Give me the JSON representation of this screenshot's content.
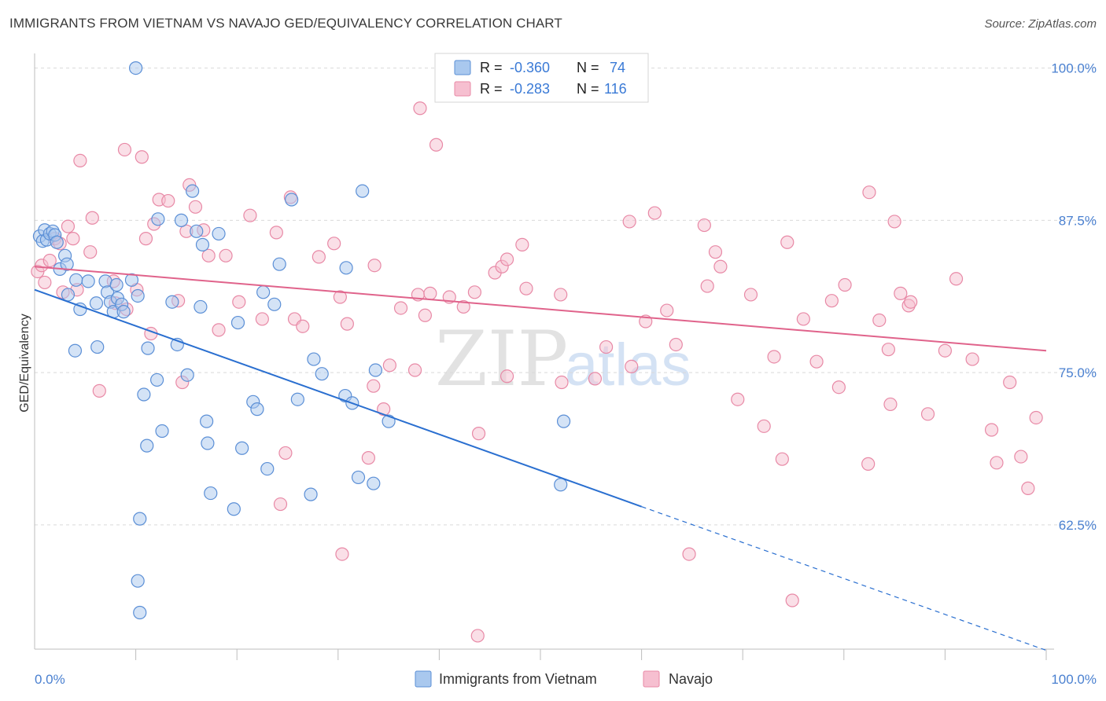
{
  "header": {
    "title": "IMMIGRANTS FROM VIETNAM VS NAVAJO GED/EQUIVALENCY CORRELATION CHART",
    "source": "Source: ZipAtlas.com"
  },
  "watermark": {
    "zip": "ZIP",
    "atlas": "atlas"
  },
  "legend_top": [
    {
      "r_label": "R =",
      "r_value": "-0.360",
      "n_label": "N =",
      "n_value": "74"
    },
    {
      "r_label": "R =",
      "r_value": "-0.283",
      "n_label": "N =",
      "n_value": "116"
    }
  ],
  "legend_bottom": [
    "Immigrants from Vietnam",
    "Navajo"
  ],
  "colors": {
    "blue_fill": "#a9c8ee",
    "blue_stroke": "#5b8fd6",
    "blue_line": "#2a6fd0",
    "pink_fill": "#f6bfd0",
    "pink_stroke": "#e889a6",
    "pink_line": "#e0638b",
    "tick_label": "#4a80d0",
    "grid": "#d9d9d9"
  },
  "chart_data": {
    "type": "scatter",
    "title": "IMMIGRANTS FROM VIETNAM VS NAVAJO GED/EQUIVALENCY CORRELATION CHART",
    "xlabel": "",
    "ylabel": "GED/Equivalency",
    "xlim": [
      0,
      100
    ],
    "ylim": [
      52.3,
      101.2
    ],
    "x_tick_labels": [
      "0.0%",
      "100.0%"
    ],
    "y_ticks": [
      62.5,
      75.0,
      87.5,
      100.0
    ],
    "y_tick_labels": [
      "62.5%",
      "75.0%",
      "87.5%",
      "100.0%"
    ],
    "grid": "horizontal dashed",
    "legend_position": "top-center and bottom",
    "series": [
      {
        "name": "Immigrants from Vietnam",
        "r": -0.36,
        "n": 74,
        "trend": {
          "x0": 0,
          "y0": 81.8,
          "x1": 60,
          "y1": 64.0,
          "dashed_to_x": 100,
          "dashed_to_y": 52.2
        },
        "points": [
          [
            0.5,
            86.2
          ],
          [
            0.8,
            85.8
          ],
          [
            1.0,
            86.7
          ],
          [
            1.2,
            85.9
          ],
          [
            1.5,
            86.4
          ],
          [
            1.8,
            86.6
          ],
          [
            2.0,
            86.3
          ],
          [
            2.2,
            85.7
          ],
          [
            2.5,
            83.5
          ],
          [
            3.0,
            84.6
          ],
          [
            3.2,
            83.9
          ],
          [
            3.3,
            81.4
          ],
          [
            4.1,
            82.6
          ],
          [
            4.0,
            76.8
          ],
          [
            4.5,
            80.2
          ],
          [
            5.3,
            82.5
          ],
          [
            6.1,
            80.7
          ],
          [
            6.2,
            77.1
          ],
          [
            7.0,
            82.5
          ],
          [
            7.2,
            81.6
          ],
          [
            7.5,
            80.8
          ],
          [
            7.8,
            80.0
          ],
          [
            8.1,
            82.2
          ],
          [
            8.2,
            81.1
          ],
          [
            8.6,
            80.6
          ],
          [
            8.8,
            80.0
          ],
          [
            9.6,
            82.6
          ],
          [
            10.2,
            81.3
          ],
          [
            10.8,
            73.2
          ],
          [
            11.1,
            69.0
          ],
          [
            12.1,
            74.4
          ],
          [
            12.6,
            70.2
          ],
          [
            11.2,
            77.0
          ],
          [
            12.2,
            87.6
          ],
          [
            13.6,
            80.8
          ],
          [
            14.1,
            77.3
          ],
          [
            14.5,
            87.5
          ],
          [
            15.1,
            74.8
          ],
          [
            15.6,
            89.9
          ],
          [
            16.0,
            86.6
          ],
          [
            16.4,
            80.4
          ],
          [
            16.6,
            85.5
          ],
          [
            17.0,
            71.0
          ],
          [
            17.1,
            69.2
          ],
          [
            17.4,
            65.1
          ],
          [
            18.2,
            86.4
          ],
          [
            19.7,
            63.8
          ],
          [
            20.1,
            79.1
          ],
          [
            20.5,
            68.8
          ],
          [
            21.6,
            72.6
          ],
          [
            22.0,
            72.0
          ],
          [
            22.6,
            81.6
          ],
          [
            23.0,
            67.1
          ],
          [
            23.7,
            80.6
          ],
          [
            24.2,
            83.9
          ],
          [
            25.4,
            89.2
          ],
          [
            26.0,
            72.8
          ],
          [
            27.3,
            65.0
          ],
          [
            27.6,
            76.1
          ],
          [
            28.4,
            74.9
          ],
          [
            30.7,
            73.1
          ],
          [
            30.8,
            83.6
          ],
          [
            31.4,
            72.5
          ],
          [
            32.0,
            66.4
          ],
          [
            32.4,
            89.9
          ],
          [
            33.5,
            65.9
          ],
          [
            33.7,
            75.2
          ],
          [
            35.0,
            71.0
          ],
          [
            52.0,
            65.8
          ],
          [
            52.3,
            71.0
          ],
          [
            10.4,
            63.0
          ],
          [
            10.2,
            57.9
          ],
          [
            10.4,
            55.3
          ],
          [
            10.0,
            100.0
          ]
        ]
      },
      {
        "name": "Navajo",
        "r": -0.283,
        "n": 116,
        "trend": {
          "x0": 0,
          "y0": 83.7,
          "x1": 100,
          "y1": 76.8
        },
        "points": [
          [
            0.3,
            83.3
          ],
          [
            0.7,
            83.8
          ],
          [
            1.0,
            82.4
          ],
          [
            1.5,
            84.2
          ],
          [
            2.0,
            86.0
          ],
          [
            2.5,
            85.6
          ],
          [
            2.8,
            81.6
          ],
          [
            3.3,
            87.0
          ],
          [
            3.8,
            86.0
          ],
          [
            4.2,
            81.8
          ],
          [
            4.5,
            92.4
          ],
          [
            5.5,
            84.9
          ],
          [
            5.7,
            87.7
          ],
          [
            6.4,
            73.5
          ],
          [
            7.8,
            82.5
          ],
          [
            8.0,
            80.7
          ],
          [
            8.9,
            93.3
          ],
          [
            9.1,
            80.2
          ],
          [
            10.1,
            81.8
          ],
          [
            10.6,
            92.7
          ],
          [
            11.0,
            86.0
          ],
          [
            11.5,
            78.2
          ],
          [
            11.8,
            87.2
          ],
          [
            12.3,
            89.2
          ],
          [
            13.2,
            89.1
          ],
          [
            14.2,
            80.9
          ],
          [
            14.6,
            74.2
          ],
          [
            15.0,
            86.6
          ],
          [
            15.3,
            90.4
          ],
          [
            15.9,
            88.6
          ],
          [
            16.7,
            86.7
          ],
          [
            17.2,
            84.6
          ],
          [
            18.2,
            78.5
          ],
          [
            18.9,
            84.6
          ],
          [
            20.2,
            80.8
          ],
          [
            21.3,
            87.9
          ],
          [
            22.5,
            79.4
          ],
          [
            23.9,
            86.5
          ],
          [
            24.3,
            64.2
          ],
          [
            24.8,
            68.4
          ],
          [
            25.3,
            89.4
          ],
          [
            25.7,
            79.4
          ],
          [
            26.5,
            78.8
          ],
          [
            28.1,
            84.5
          ],
          [
            29.6,
            85.6
          ],
          [
            30.2,
            81.2
          ],
          [
            30.4,
            60.1
          ],
          [
            30.9,
            79.0
          ],
          [
            33.0,
            68.0
          ],
          [
            33.5,
            73.9
          ],
          [
            33.6,
            83.8
          ],
          [
            34.5,
            72.0
          ],
          [
            35.1,
            75.6
          ],
          [
            36.2,
            80.3
          ],
          [
            37.6,
            75.2
          ],
          [
            37.9,
            81.4
          ],
          [
            38.1,
            96.7
          ],
          [
            38.6,
            79.7
          ],
          [
            39.1,
            81.5
          ],
          [
            39.7,
            93.7
          ],
          [
            41.0,
            81.2
          ],
          [
            42.4,
            80.4
          ],
          [
            43.5,
            81.6
          ],
          [
            43.8,
            53.4
          ],
          [
            43.9,
            70.0
          ],
          [
            45.5,
            83.2
          ],
          [
            46.2,
            83.7
          ],
          [
            46.7,
            84.3
          ],
          [
            46.7,
            74.7
          ],
          [
            47.5,
            100.0
          ],
          [
            48.2,
            85.5
          ],
          [
            48.6,
            81.9
          ],
          [
            52.0,
            81.4
          ],
          [
            52.1,
            74.2
          ],
          [
            53.6,
            99.6
          ],
          [
            53.7,
            100.0
          ],
          [
            55.4,
            74.5
          ],
          [
            56.5,
            77.1
          ],
          [
            58.8,
            87.4
          ],
          [
            59.0,
            75.5
          ],
          [
            60.4,
            79.2
          ],
          [
            61.3,
            88.1
          ],
          [
            62.5,
            80.1
          ],
          [
            63.4,
            77.3
          ],
          [
            64.7,
            60.1
          ],
          [
            66.2,
            87.1
          ],
          [
            66.5,
            82.1
          ],
          [
            67.3,
            84.9
          ],
          [
            67.8,
            83.7
          ],
          [
            69.5,
            72.8
          ],
          [
            70.8,
            81.4
          ],
          [
            72.1,
            70.6
          ],
          [
            73.1,
            76.3
          ],
          [
            73.9,
            67.9
          ],
          [
            74.4,
            85.7
          ],
          [
            74.9,
            56.3
          ],
          [
            76.0,
            79.4
          ],
          [
            77.3,
            75.9
          ],
          [
            78.8,
            80.9
          ],
          [
            79.5,
            73.8
          ],
          [
            80.1,
            82.2
          ],
          [
            82.4,
            67.5
          ],
          [
            82.5,
            89.8
          ],
          [
            83.5,
            79.3
          ],
          [
            84.4,
            76.9
          ],
          [
            84.6,
            72.4
          ],
          [
            85.0,
            87.4
          ],
          [
            85.6,
            81.5
          ],
          [
            86.4,
            80.5
          ],
          [
            86.6,
            80.8
          ],
          [
            88.3,
            71.6
          ],
          [
            90.0,
            76.8
          ],
          [
            91.1,
            82.7
          ],
          [
            92.7,
            76.1
          ],
          [
            94.6,
            70.3
          ],
          [
            95.1,
            67.6
          ],
          [
            96.4,
            74.2
          ],
          [
            97.5,
            68.1
          ],
          [
            98.2,
            65.5
          ],
          [
            99.0,
            71.3
          ]
        ]
      }
    ]
  }
}
